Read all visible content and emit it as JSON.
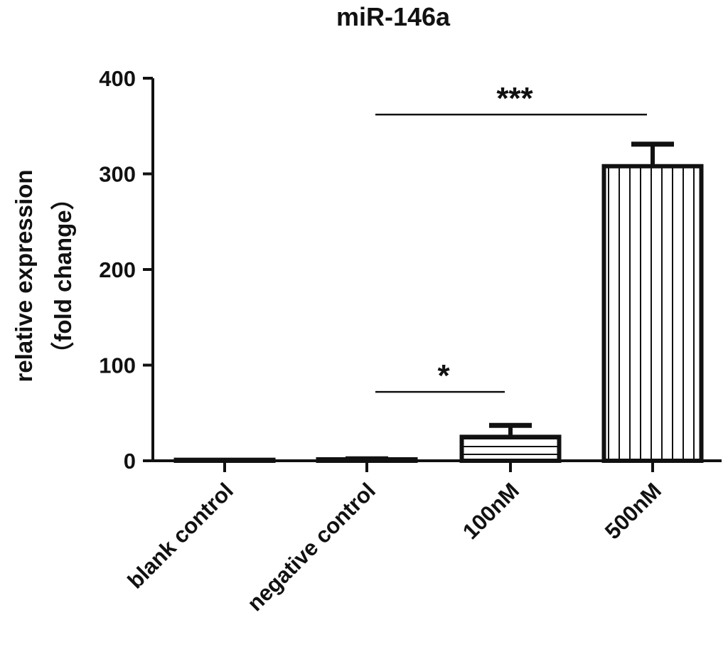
{
  "chart_data": {
    "type": "bar",
    "title": "miR-146a",
    "ylabel_line1": "relative expression",
    "ylabel_line2": "（fold change）",
    "xlabel": "",
    "categories": [
      "blank control",
      "negative control",
      "100nM",
      "500nM"
    ],
    "values": [
      1,
      1.5,
      25,
      308
    ],
    "errors": [
      0,
      0.5,
      12,
      23
    ],
    "patterns": [
      "none",
      "none",
      "horizontal-lines",
      "vertical-lines"
    ],
    "ylim": [
      0,
      400
    ],
    "yticks": [
      0,
      100,
      200,
      300,
      400
    ],
    "grid": false,
    "significance": [
      {
        "from": 1,
        "to": 2,
        "label": "*",
        "y": 72
      },
      {
        "from": 1,
        "to": 3,
        "label": "***",
        "y": 362
      }
    ],
    "colors": {
      "bar_stroke": "#111111",
      "bar_fill": "#ffffff",
      "text": "#111111"
    }
  }
}
